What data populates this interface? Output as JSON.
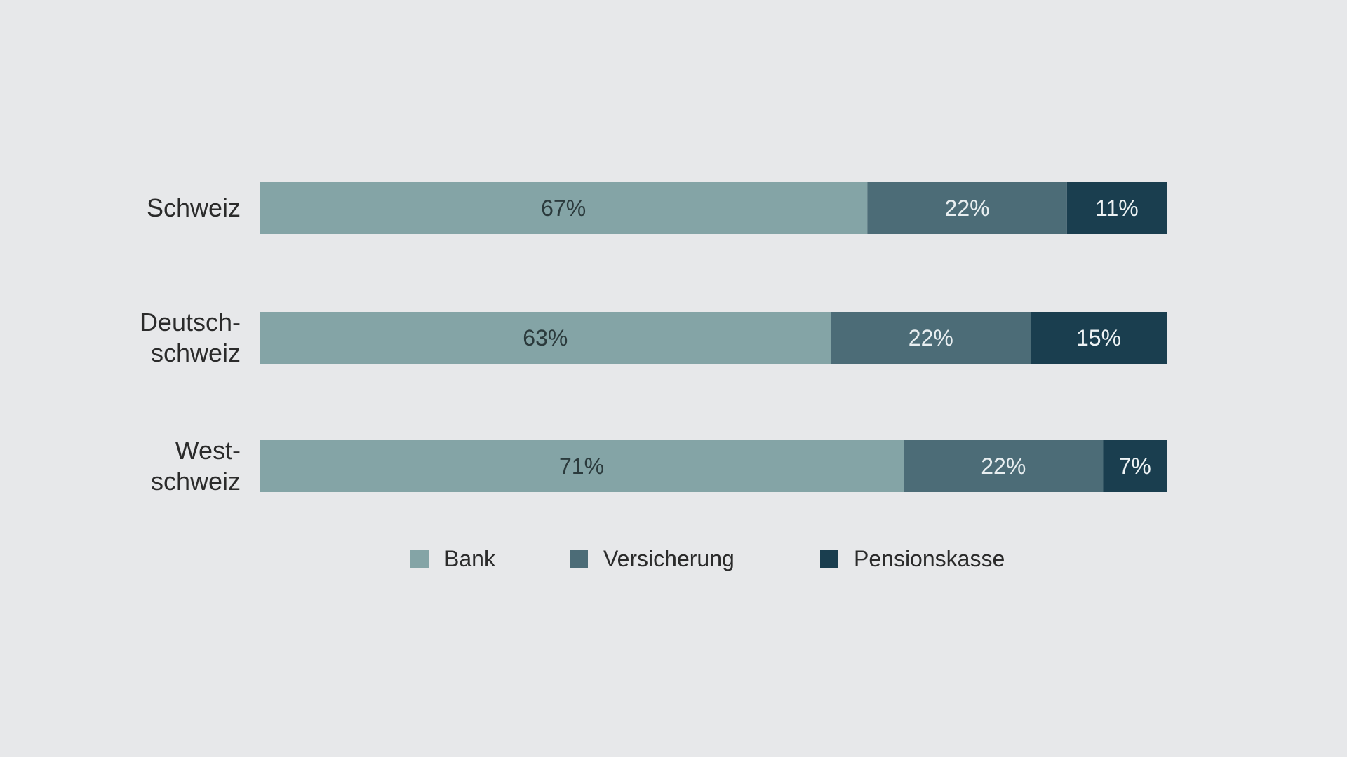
{
  "chart_data": {
    "type": "bar",
    "orientation": "horizontal",
    "stacked": true,
    "categories": [
      [
        "Schweiz"
      ],
      [
        "Deutsch-",
        "schweiz"
      ],
      [
        "West-",
        "schweiz"
      ]
    ],
    "series": [
      {
        "name": "Bank",
        "color": "#84a4a6",
        "label_color": "#2b3a3c",
        "values": [
          67,
          63,
          71
        ]
      },
      {
        "name": "Versicherung",
        "color": "#4c6c77",
        "label_color": "#e8eef0",
        "values": [
          22,
          22,
          22
        ]
      },
      {
        "name": "Pensionskasse",
        "color": "#1a3e4f",
        "label_color": "#eef3f5",
        "values": [
          11,
          15,
          7
        ]
      }
    ],
    "value_suffix": "%",
    "xlim": [
      0,
      100
    ],
    "grid": false,
    "legend": "bottom-center"
  }
}
